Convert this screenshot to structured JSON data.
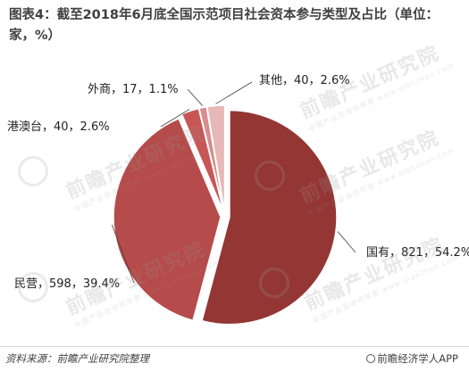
{
  "chart_data": {
    "type": "pie",
    "title": "图表4：截至2018年6月底全国示范项目社会资本参与类型及占比（单位：家，%）",
    "slices": [
      {
        "name": "国有",
        "value": 821,
        "percent": "54.2%",
        "label": "国有，821，54.2%",
        "color": "#943634"
      },
      {
        "name": "民营",
        "value": 598,
        "percent": "39.4%",
        "label": "民营，598，39.4%",
        "color": "#b54b4a"
      },
      {
        "name": "港澳台",
        "value": 40,
        "percent": "2.6%",
        "label": "港澳台，40，2.6%",
        "color": "#c85655"
      },
      {
        "name": "外商",
        "value": 17,
        "percent": "1.1%",
        "label": "外商，17，1.1%",
        "color": "#d98c8c"
      },
      {
        "name": "其他",
        "value": 40,
        "percent": "2.6%",
        "label": "其他，40，2.6%",
        "color": "#e6b8b7"
      }
    ]
  },
  "watermark": {
    "text": "前瞻产业研究院",
    "subtext": "中国产业咨询领导者 www.qianzhan.com"
  },
  "footer": {
    "source": "资料来源：前瞻产业研究院整理",
    "brand": "前瞻经济学人APP",
    "brand_icon": "qianzhan-logo-icon"
  }
}
